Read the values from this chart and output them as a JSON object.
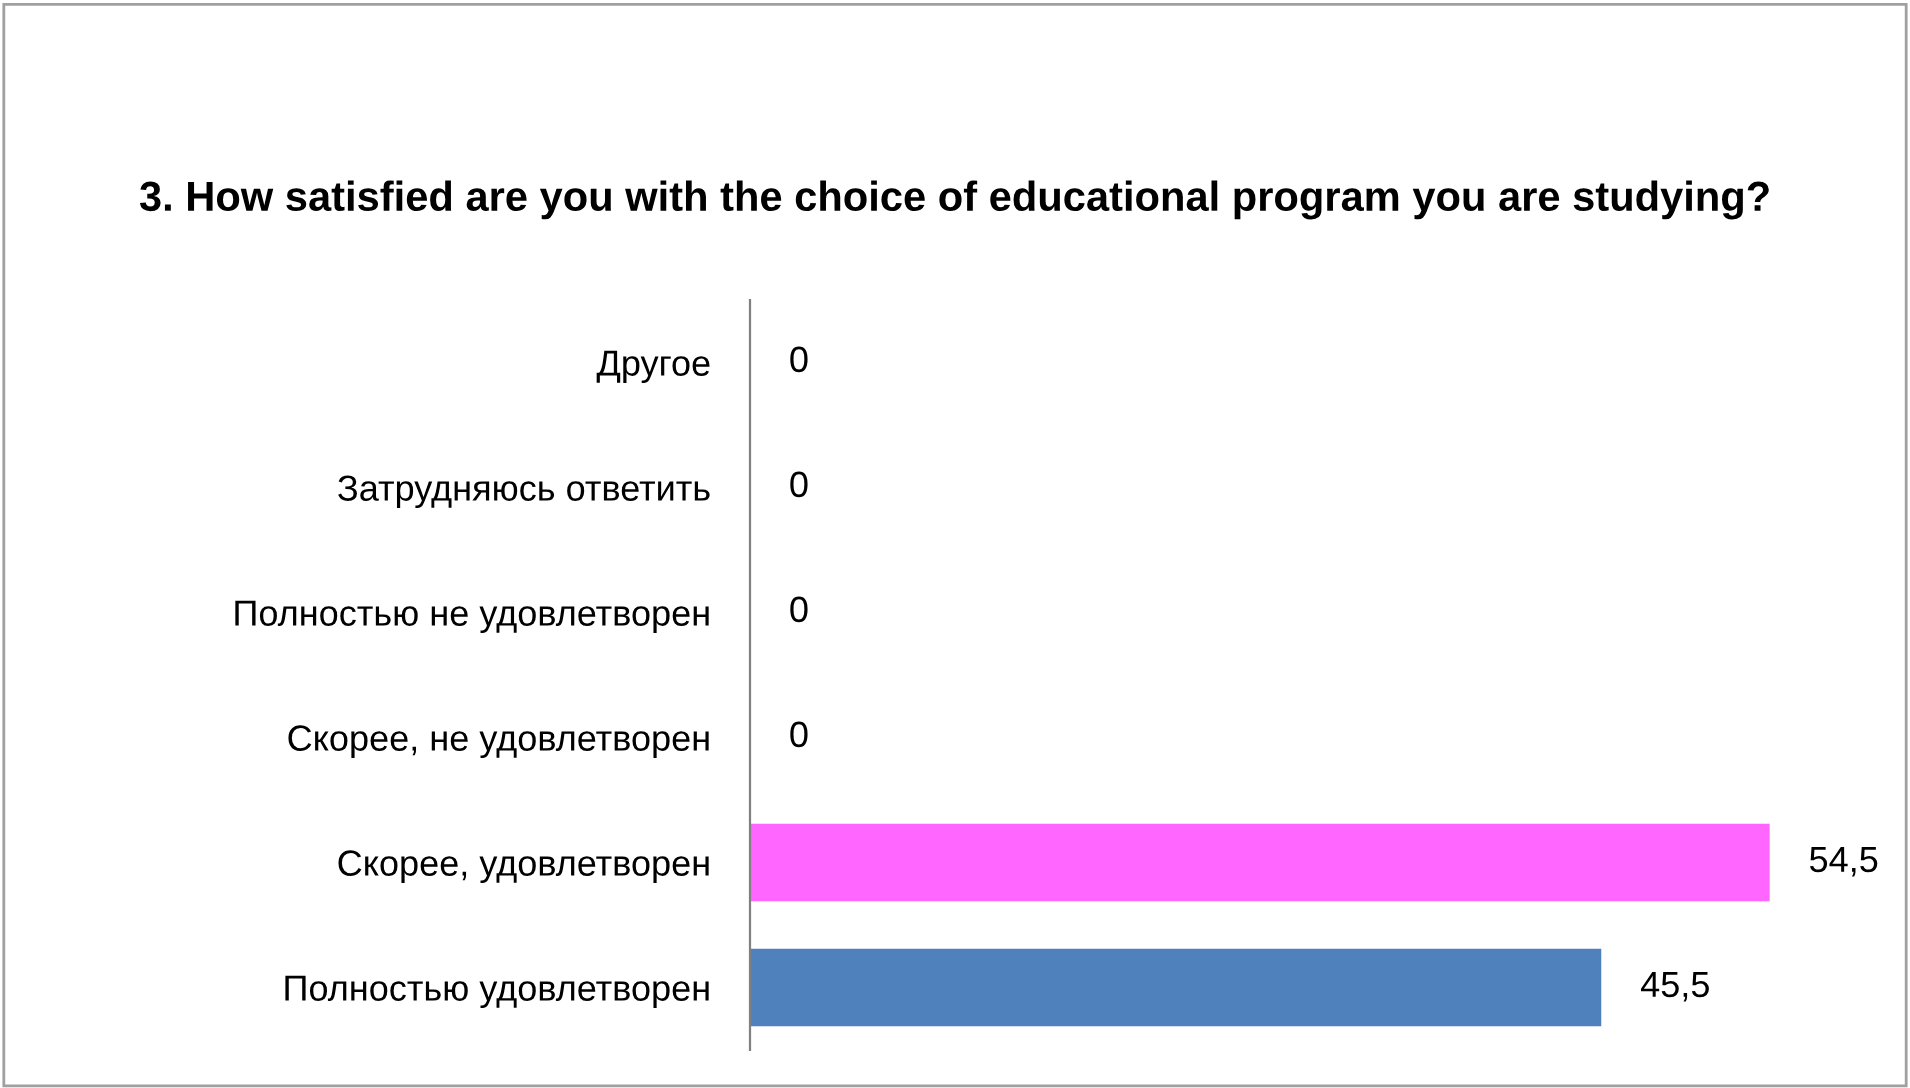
{
  "chart_data": {
    "type": "bar",
    "orientation": "horizontal",
    "title": "3. How satisfied are you with the choice of educational program you are studying?",
    "categories": [
      "Другое",
      "Затрудняюсь ответить",
      "Полностью не удовлетворен",
      "Скорее, не удовлетворен",
      "Скорее, удовлетворен",
      "Полностью удовлетворен"
    ],
    "values": [
      0,
      0,
      0,
      0,
      54.5,
      45.5
    ],
    "colors": [
      "#4f81bd",
      "#4f81bd",
      "#4f81bd",
      "#4f81bd",
      "#ff66ff",
      "#4f81bd"
    ],
    "value_labels": [
      "0",
      "0",
      "0",
      "0",
      "54,5",
      "45,5"
    ],
    "grid": false,
    "legend": false
  }
}
